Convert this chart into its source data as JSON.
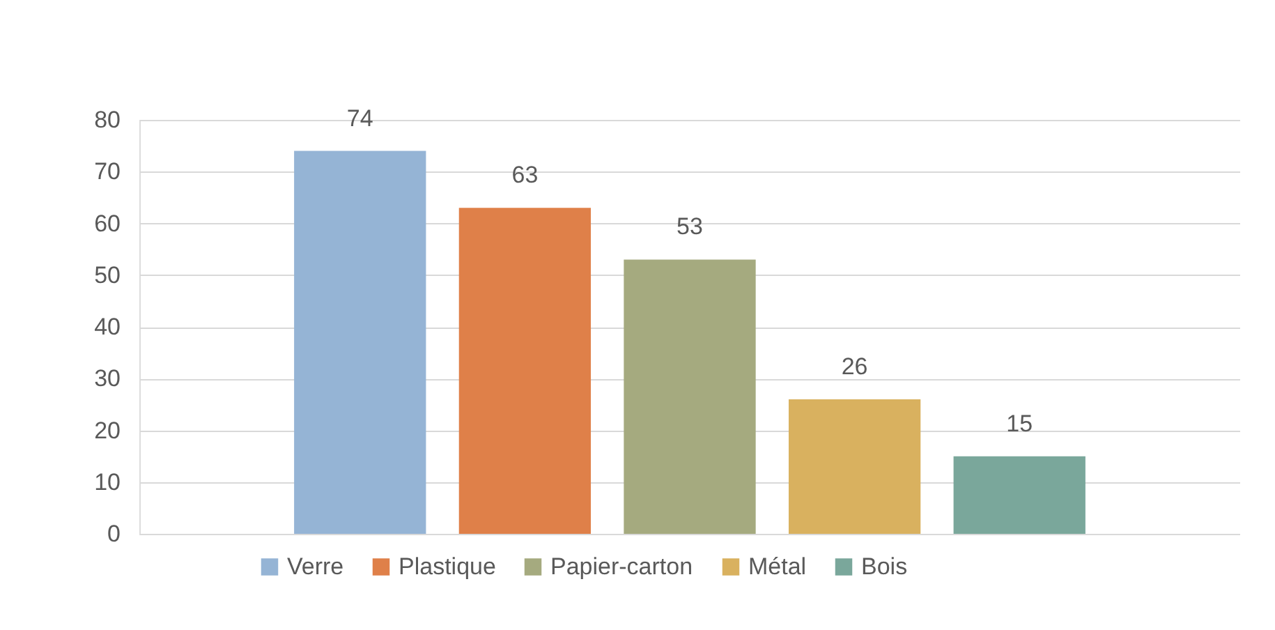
{
  "chart_data": {
    "type": "bar",
    "categories": [
      null
    ],
    "series": [
      {
        "name": "Verre",
        "color": "#95b4d5",
        "values": [
          74
        ]
      },
      {
        "name": "Plastique",
        "color": "#df8049",
        "values": [
          63
        ]
      },
      {
        "name": "Papier-carton",
        "color": "#a5aa7f",
        "values": [
          53
        ]
      },
      {
        "name": "Métal",
        "color": "#d9b15f",
        "values": [
          26
        ]
      },
      {
        "name": "Bois",
        "color": "#7aa79b",
        "values": [
          15
        ]
      }
    ],
    "ylim": [
      0,
      80
    ],
    "yticks": [
      0,
      10,
      20,
      30,
      40,
      50,
      60,
      70,
      80
    ],
    "grid": "y",
    "legend": "bottom",
    "data_labels": true
  }
}
